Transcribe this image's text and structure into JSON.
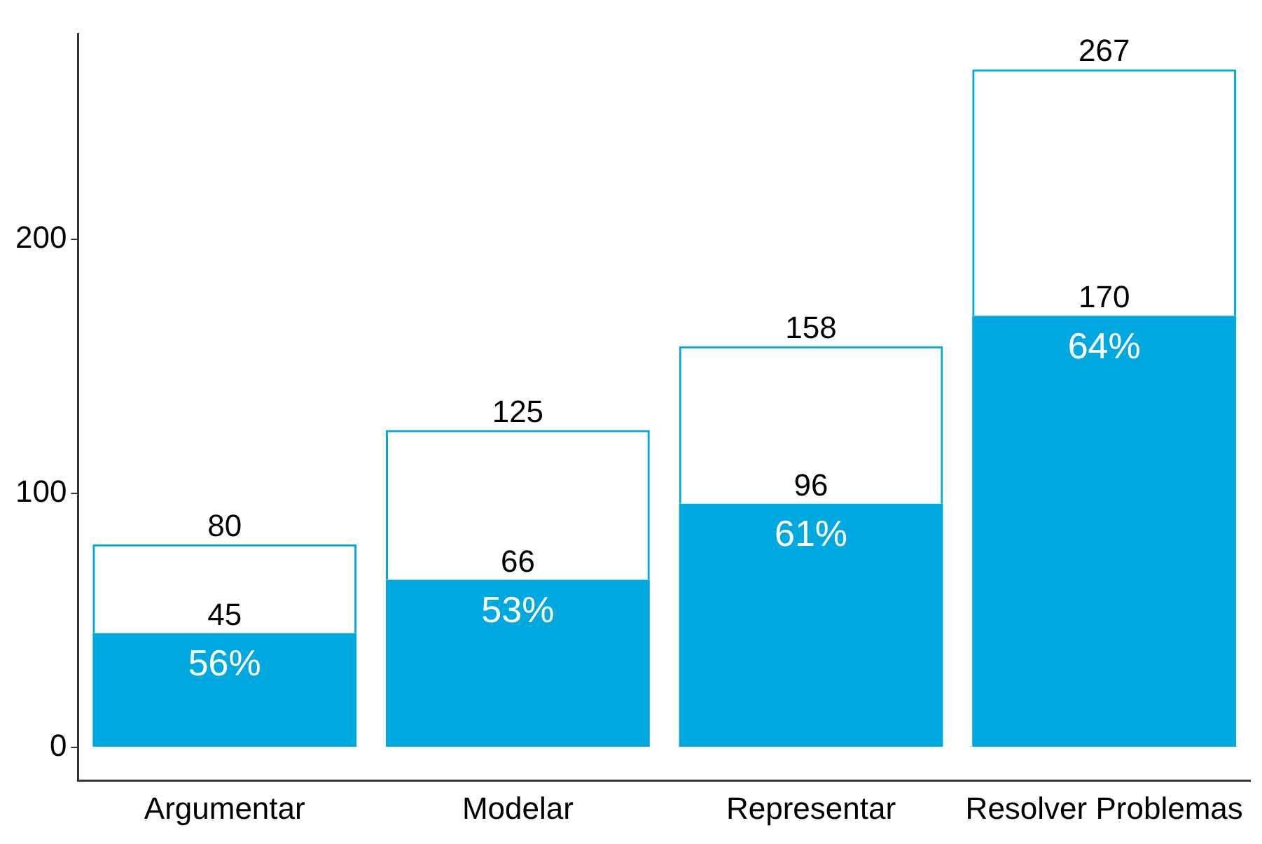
{
  "chart_data": {
    "type": "bar",
    "categories": [
      "Argumentar",
      "Modelar",
      "Representar",
      "Resolver Problemas"
    ],
    "stacked": true,
    "series": [
      {
        "color": "#00a8e0",
        "values": [
          45,
          66,
          96,
          170
        ],
        "value_labels": [
          "45",
          "66",
          "96",
          "170"
        ]
      },
      {
        "color": "#00a8e0",
        "values": [
          35,
          59,
          62,
          97
        ]
      }
    ],
    "totals": [
      "80",
      "125",
      "158",
      "267"
    ],
    "annotations": [
      {
        "text": "56%",
        "x": "Argumentar",
        "y": 45
      },
      {
        "text": "53%",
        "x": "Modelar",
        "y": 66
      },
      {
        "text": "61%",
        "x": "Representar",
        "y": 96
      },
      {
        "text": "64%",
        "x": "Resolver Problemas",
        "y": 170
      }
    ],
    "ylim": [
      -13,
      281
    ],
    "yticks": [
      0,
      100,
      200
    ],
    "grid": false,
    "legend": false
  }
}
